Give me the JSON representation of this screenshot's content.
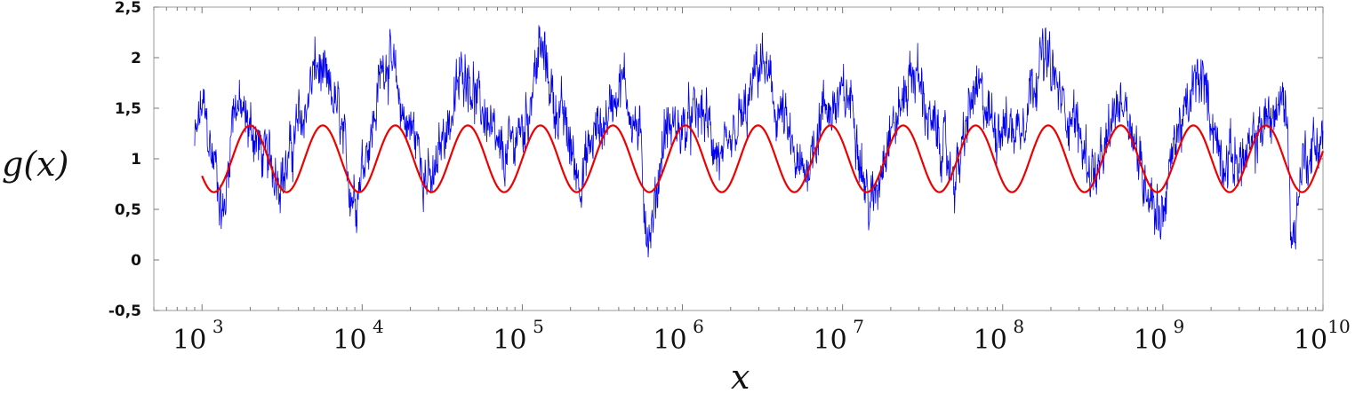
{
  "chart_data": {
    "type": "line",
    "title": "",
    "xlabel": "x",
    "ylabel": "g(x)",
    "xscale": "log",
    "xlim": [
      500,
      10000000000
    ],
    "ylim": [
      -0.5,
      2.5
    ],
    "grid": false,
    "legend": "none",
    "yticks": [
      {
        "value": 2.5,
        "label": "2,5"
      },
      {
        "value": 2,
        "label": "2"
      },
      {
        "value": 1.5,
        "label": "1,5"
      },
      {
        "value": 1,
        "label": "1"
      },
      {
        "value": 0.5,
        "label": "0,5"
      },
      {
        "value": 0,
        "label": "0"
      },
      {
        "value": -0.5,
        "label": "-0,5"
      }
    ],
    "xticks": [
      {
        "value": 1000,
        "base": "10",
        "exp": "3"
      },
      {
        "value": 10000,
        "base": "10",
        "exp": "4"
      },
      {
        "value": 100000,
        "base": "10",
        "exp": "5"
      },
      {
        "value": 1000000,
        "base": "10",
        "exp": "6"
      },
      {
        "value": 10000000,
        "base": "10",
        "exp": "7"
      },
      {
        "value": 100000000,
        "base": "10",
        "exp": "8"
      },
      {
        "value": 1000000000,
        "base": "10",
        "exp": "9"
      },
      {
        "value": 10000000000,
        "base": "10",
        "exp": "10"
      }
    ],
    "series": [
      {
        "color": "#0000ee",
        "style": "noisy",
        "x_range": [
          900,
          10000000000
        ],
        "points": [
          [
            900,
            1.15
          ],
          [
            1000,
            1.5
          ],
          [
            1200,
            0.95
          ],
          [
            1350,
            0.45
          ],
          [
            1600,
            1.55
          ],
          [
            2000,
            1.3
          ],
          [
            2500,
            1.0
          ],
          [
            3200,
            0.85
          ],
          [
            4200,
            1.4
          ],
          [
            5200,
            1.9
          ],
          [
            6500,
            1.6
          ],
          [
            9000,
            0.65
          ],
          [
            11000,
            1.2
          ],
          [
            14000,
            2.0
          ],
          [
            20000,
            1.3
          ],
          [
            27000,
            0.75
          ],
          [
            34000,
            1.35
          ],
          [
            44000,
            1.9
          ],
          [
            55000,
            1.5
          ],
          [
            75000,
            1.0
          ],
          [
            100000,
            1.3
          ],
          [
            130000,
            2.05
          ],
          [
            170000,
            1.45
          ],
          [
            230000,
            0.85
          ],
          [
            300000,
            1.3
          ],
          [
            420000,
            1.75
          ],
          [
            520000,
            1.3
          ],
          [
            620000,
            0.25
          ],
          [
            800000,
            1.3
          ],
          [
            1000000,
            1.3
          ],
          [
            1300000,
            1.45
          ],
          [
            1800000,
            0.95
          ],
          [
            2400000,
            1.4
          ],
          [
            3100000,
            1.95
          ],
          [
            4000000,
            1.45
          ],
          [
            5500000,
            0.85
          ],
          [
            8000000,
            1.5
          ],
          [
            11000000,
            1.6
          ],
          [
            15000000,
            0.55
          ],
          [
            20000000,
            1.3
          ],
          [
            28000000,
            1.85
          ],
          [
            38000000,
            1.25
          ],
          [
            50000000,
            0.85
          ],
          [
            68000000,
            1.65
          ],
          [
            90000000,
            1.35
          ],
          [
            120000000,
            1.3
          ],
          [
            180000000,
            2.0
          ],
          [
            260000000,
            1.45
          ],
          [
            380000000,
            0.85
          ],
          [
            560000000,
            1.6
          ],
          [
            800000000,
            0.75
          ],
          [
            950000000,
            0.45
          ],
          [
            1300000000,
            1.35
          ],
          [
            1700000000,
            1.8
          ],
          [
            2400000000,
            1.0
          ],
          [
            3300000000,
            1.0
          ],
          [
            4500000000,
            1.4
          ],
          [
            5800000000,
            1.55
          ],
          [
            6500000000,
            0.2
          ],
          [
            7500000000,
            1.0
          ],
          [
            10000000000,
            1.2
          ]
        ]
      },
      {
        "color": "#ee0000",
        "style": "sinusoid",
        "description_formula": "1 + A*sin(B*ln(x) + C)",
        "amplitude": 0.33,
        "mean": 1.0,
        "x_range": [
          1000,
          10000000000
        ],
        "peaks_at": [
          2000,
          5500,
          15500,
          44000,
          125000,
          350000,
          1000000,
          2900000,
          8300000,
          24000000,
          69000000,
          190000000,
          550000000,
          1550000000,
          4400000000
        ]
      }
    ]
  }
}
